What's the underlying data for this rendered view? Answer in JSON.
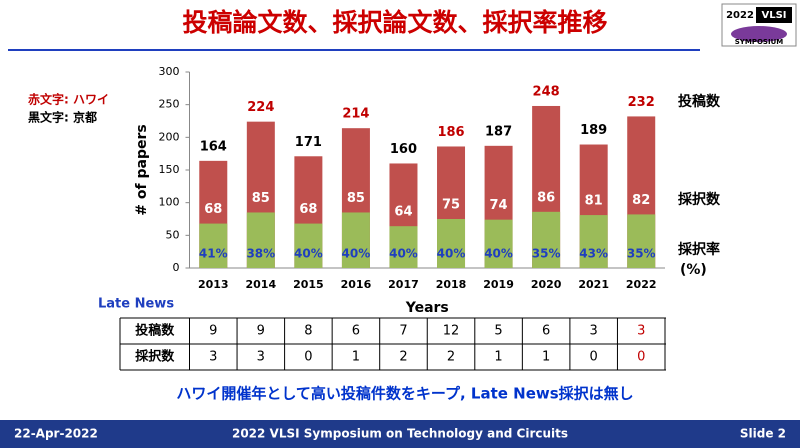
{
  "title": "投稿論文数、採択論文数、採択率推移",
  "logo": {
    "year": "2022",
    "name": "VLSI",
    "sub": "SYMPOSIUM"
  },
  "legend_notes": [
    "赤文字: ハワイ",
    "黒文字: 京都"
  ],
  "chart_data": {
    "type": "overlap-bar",
    "categories": [
      "2013",
      "2014",
      "2015",
      "2016",
      "2017",
      "2018",
      "2019",
      "2020",
      "2021",
      "2022"
    ],
    "x_label": "Years",
    "y_label": "# of papers",
    "ylim": [
      0,
      300
    ],
    "yticks": [
      0,
      50,
      100,
      150,
      200,
      250,
      300
    ],
    "series": [
      {
        "name": "投稿数",
        "color": "#c0504d",
        "values": [
          164,
          224,
          171,
          214,
          160,
          186,
          187,
          248,
          189,
          232
        ],
        "label_colors": [
          "#000000",
          "#c00000",
          "#000000",
          "#c00000",
          "#000000",
          "#c00000",
          "#000000",
          "#c00000",
          "#000000",
          "#c00000"
        ]
      },
      {
        "name": "採択数",
        "color": "#9bbb59",
        "values": [
          68,
          85,
          68,
          85,
          64,
          75,
          74,
          86,
          81,
          82
        ]
      },
      {
        "name": "採択率",
        "unit": "(%)",
        "color": "#1f3fbf",
        "values": [
          41,
          38,
          40,
          40,
          40,
          40,
          40,
          35,
          43,
          35
        ],
        "value_labels": [
          "41%",
          "38%",
          "40%",
          "40%",
          "40%",
          "40%",
          "40%",
          "35%",
          "43%",
          "35%"
        ]
      }
    ]
  },
  "late_news": {
    "title": "Late News",
    "rows": [
      {
        "label": "投稿数",
        "values": [
          9,
          9,
          8,
          6,
          7,
          12,
          5,
          6,
          3,
          3
        ]
      },
      {
        "label": "採択数",
        "values": [
          3,
          3,
          0,
          1,
          2,
          2,
          1,
          1,
          0,
          0
        ]
      }
    ]
  },
  "message": "ハワイ開催年として高い投稿件数をキープ, Late News採択は無し",
  "footer": {
    "date": "22-Apr-2022",
    "event": "2022 VLSI Symposium on Technology and Circuits",
    "slide": "Slide 2"
  }
}
